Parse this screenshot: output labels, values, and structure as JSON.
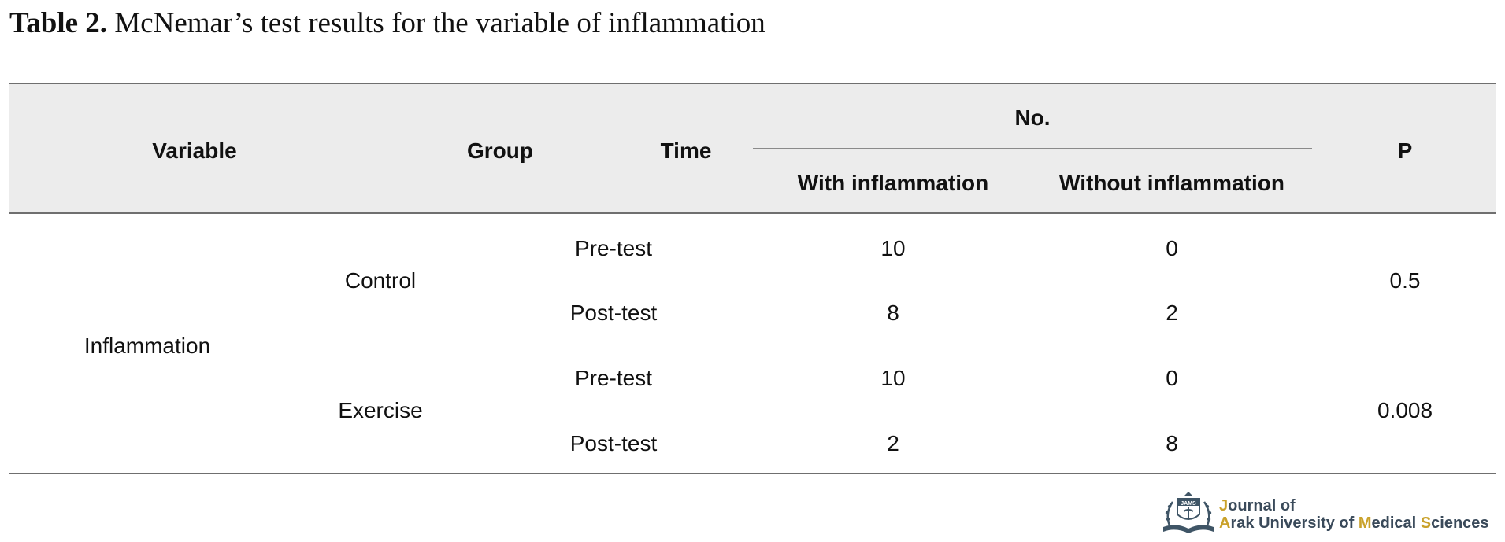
{
  "caption": {
    "label": "Table 2.",
    "text": " McNemar’s test results for the variable of inflammation"
  },
  "table": {
    "headers": {
      "variable": "Variable",
      "group": "Group",
      "time": "Time",
      "no": "No.",
      "with": "With inflammation",
      "without": "Without inflammation",
      "p": "P"
    },
    "variable_name": "Inflammation",
    "groups": [
      {
        "name": "Control",
        "p": "0.5",
        "rows": [
          {
            "time": "Pre-test",
            "with": "10",
            "without": "0"
          },
          {
            "time": "Post-test",
            "with": "8",
            "without": "2"
          }
        ]
      },
      {
        "name": "Exercise",
        "p": "0.008",
        "rows": [
          {
            "time": "Pre-test",
            "with": "10",
            "without": "0"
          },
          {
            "time": "Post-test",
            "with": "2",
            "without": "8"
          }
        ]
      }
    ]
  },
  "logo": {
    "line1": "Journal of",
    "line2": "Arak University of Medical Sciences",
    "emblem_text": "JAMS",
    "accent_color": "#c9a12a",
    "icon": "journal-emblem-icon"
  }
}
